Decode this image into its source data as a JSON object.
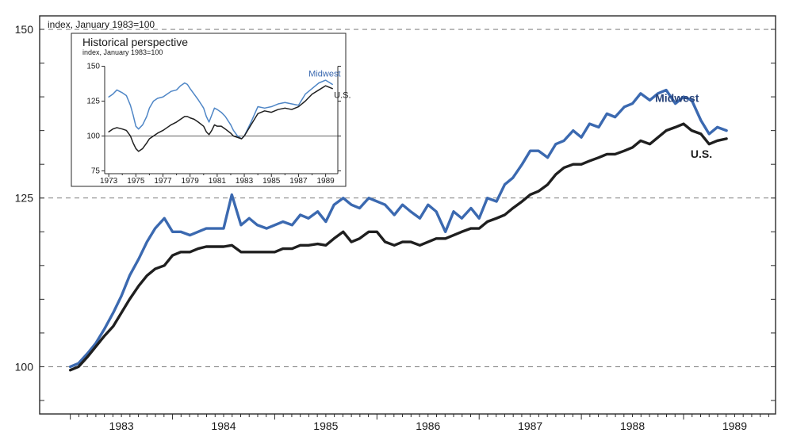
{
  "main_chart": {
    "type": "line",
    "index_label": "index, January 1983=100",
    "background_color": "#ffffff",
    "frame_color": "#2a2a2a",
    "grid_color": "#6a6a6a",
    "grid_dash": "6 5",
    "axis_font_size": 12,
    "tick_font_size": 14,
    "label_font_size": 14,
    "xlim": [
      1982.7,
      1989.9
    ],
    "ylim": [
      93,
      152
    ],
    "yticks": [
      100,
      125,
      150
    ],
    "xticks": [
      1983,
      1984,
      1985,
      1986,
      1987,
      1988,
      1989
    ],
    "minor_xtick_step_months": 1,
    "minor_ytick_step": 5,
    "series": [
      {
        "name": "Midwest",
        "color": "#3b69b0",
        "stroke_width": 3.4,
        "label_color": "#27437a",
        "data": [
          [
            1983.0,
            100.0
          ],
          [
            1983.08,
            100.5
          ],
          [
            1983.17,
            102.0
          ],
          [
            1983.25,
            103.5
          ],
          [
            1983.33,
            105.5
          ],
          [
            1983.42,
            108.0
          ],
          [
            1983.5,
            110.5
          ],
          [
            1983.58,
            113.5
          ],
          [
            1983.67,
            116.0
          ],
          [
            1983.75,
            118.5
          ],
          [
            1983.83,
            120.5
          ],
          [
            1983.92,
            122.0
          ],
          [
            1984.0,
            120.0
          ],
          [
            1984.08,
            120.0
          ],
          [
            1984.17,
            119.5
          ],
          [
            1984.25,
            120.0
          ],
          [
            1984.33,
            120.5
          ],
          [
            1984.42,
            120.5
          ],
          [
            1984.5,
            120.5
          ],
          [
            1984.58,
            125.5
          ],
          [
            1984.67,
            121.0
          ],
          [
            1984.75,
            122.0
          ],
          [
            1984.83,
            121.0
          ],
          [
            1984.92,
            120.5
          ],
          [
            1985.0,
            121.0
          ],
          [
            1985.08,
            121.5
          ],
          [
            1985.17,
            121.0
          ],
          [
            1985.25,
            122.5
          ],
          [
            1985.33,
            122.0
          ],
          [
            1985.42,
            123.0
          ],
          [
            1985.5,
            121.5
          ],
          [
            1985.58,
            124.0
          ],
          [
            1985.67,
            125.0
          ],
          [
            1985.75,
            124.0
          ],
          [
            1985.83,
            123.5
          ],
          [
            1985.92,
            125.0
          ],
          [
            1986.0,
            124.5
          ],
          [
            1986.08,
            124.0
          ],
          [
            1986.17,
            122.5
          ],
          [
            1986.25,
            124.0
          ],
          [
            1986.33,
            123.0
          ],
          [
            1986.42,
            122.0
          ],
          [
            1986.5,
            124.0
          ],
          [
            1986.58,
            123.0
          ],
          [
            1986.67,
            120.0
          ],
          [
            1986.75,
            123.0
          ],
          [
            1986.83,
            122.0
          ],
          [
            1986.92,
            123.5
          ],
          [
            1987.0,
            122.0
          ],
          [
            1987.08,
            125.0
          ],
          [
            1987.17,
            124.5
          ],
          [
            1987.25,
            127.0
          ],
          [
            1987.33,
            128.0
          ],
          [
            1987.42,
            130.0
          ],
          [
            1987.5,
            132.0
          ],
          [
            1987.58,
            132.0
          ],
          [
            1987.67,
            131.0
          ],
          [
            1987.75,
            133.0
          ],
          [
            1987.83,
            133.5
          ],
          [
            1987.92,
            135.0
          ],
          [
            1988.0,
            134.0
          ],
          [
            1988.08,
            136.0
          ],
          [
            1988.17,
            135.5
          ],
          [
            1988.25,
            137.5
          ],
          [
            1988.33,
            137.0
          ],
          [
            1988.42,
            138.5
          ],
          [
            1988.5,
            139.0
          ],
          [
            1988.58,
            140.5
          ],
          [
            1988.67,
            139.5
          ],
          [
            1988.75,
            140.5
          ],
          [
            1988.83,
            141.0
          ],
          [
            1988.92,
            139.0
          ],
          [
            1989.0,
            140.0
          ],
          [
            1989.08,
            139.5
          ],
          [
            1989.17,
            136.5
          ],
          [
            1989.25,
            134.5
          ],
          [
            1989.33,
            135.5
          ],
          [
            1989.42,
            135.0
          ]
        ]
      },
      {
        "name": "U.S.",
        "color": "#1f1f1f",
        "stroke_width": 3.4,
        "label_color": "#1f1f1f",
        "data": [
          [
            1983.0,
            99.5
          ],
          [
            1983.08,
            100.0
          ],
          [
            1983.17,
            101.5
          ],
          [
            1983.25,
            103.0
          ],
          [
            1983.33,
            104.5
          ],
          [
            1983.42,
            106.0
          ],
          [
            1983.5,
            108.0
          ],
          [
            1983.58,
            110.0
          ],
          [
            1983.67,
            112.0
          ],
          [
            1983.75,
            113.5
          ],
          [
            1983.83,
            114.5
          ],
          [
            1983.92,
            115.0
          ],
          [
            1984.0,
            116.5
          ],
          [
            1984.08,
            117.0
          ],
          [
            1984.17,
            117.0
          ],
          [
            1984.25,
            117.5
          ],
          [
            1984.33,
            117.8
          ],
          [
            1984.42,
            117.8
          ],
          [
            1984.5,
            117.8
          ],
          [
            1984.58,
            118.0
          ],
          [
            1984.67,
            117.0
          ],
          [
            1984.75,
            117.0
          ],
          [
            1984.83,
            117.0
          ],
          [
            1984.92,
            117.0
          ],
          [
            1985.0,
            117.0
          ],
          [
            1985.08,
            117.5
          ],
          [
            1985.17,
            117.5
          ],
          [
            1985.25,
            118.0
          ],
          [
            1985.33,
            118.0
          ],
          [
            1985.42,
            118.2
          ],
          [
            1985.5,
            118.0
          ],
          [
            1985.58,
            119.0
          ],
          [
            1985.67,
            120.0
          ],
          [
            1985.75,
            118.5
          ],
          [
            1985.83,
            119.0
          ],
          [
            1985.92,
            120.0
          ],
          [
            1986.0,
            120.0
          ],
          [
            1986.08,
            118.5
          ],
          [
            1986.17,
            118.0
          ],
          [
            1986.25,
            118.5
          ],
          [
            1986.33,
            118.5
          ],
          [
            1986.42,
            118.0
          ],
          [
            1986.5,
            118.5
          ],
          [
            1986.58,
            119.0
          ],
          [
            1986.67,
            119.0
          ],
          [
            1986.75,
            119.5
          ],
          [
            1986.83,
            120.0
          ],
          [
            1986.92,
            120.5
          ],
          [
            1987.0,
            120.5
          ],
          [
            1987.08,
            121.5
          ],
          [
            1987.17,
            122.0
          ],
          [
            1987.25,
            122.5
          ],
          [
            1987.33,
            123.5
          ],
          [
            1987.42,
            124.5
          ],
          [
            1987.5,
            125.5
          ],
          [
            1987.58,
            126.0
          ],
          [
            1987.67,
            127.0
          ],
          [
            1987.75,
            128.5
          ],
          [
            1987.83,
            129.5
          ],
          [
            1987.92,
            130.0
          ],
          [
            1988.0,
            130.0
          ],
          [
            1988.08,
            130.5
          ],
          [
            1988.17,
            131.0
          ],
          [
            1988.25,
            131.5
          ],
          [
            1988.33,
            131.5
          ],
          [
            1988.42,
            132.0
          ],
          [
            1988.5,
            132.5
          ],
          [
            1988.58,
            133.5
          ],
          [
            1988.67,
            133.0
          ],
          [
            1988.75,
            134.0
          ],
          [
            1988.83,
            135.0
          ],
          [
            1988.92,
            135.5
          ],
          [
            1989.0,
            136.0
          ],
          [
            1989.08,
            135.0
          ],
          [
            1989.17,
            134.5
          ],
          [
            1989.25,
            133.0
          ],
          [
            1989.33,
            133.5
          ],
          [
            1989.42,
            133.8
          ]
        ]
      }
    ]
  },
  "inset_chart": {
    "type": "line",
    "title": "Historical perspective",
    "index_label": "index, January 1983=100",
    "background_color": "#ffffff",
    "frame_color": "#2a2a2a",
    "grid_color": "#2a2a2a",
    "xlim": [
      1972.7,
      1989.9
    ],
    "ylim": [
      73,
      152
    ],
    "yticks": [
      75,
      100,
      125,
      150
    ],
    "xticks": [
      1973,
      1975,
      1977,
      1979,
      1981,
      1983,
      1985,
      1987,
      1989
    ],
    "series": [
      {
        "name": "Midwest",
        "color": "#4f86c6",
        "stroke_width": 1.5,
        "label_color": "#3b69b0",
        "data": [
          [
            1973.0,
            128
          ],
          [
            1973.3,
            130
          ],
          [
            1973.6,
            133
          ],
          [
            1974.0,
            131
          ],
          [
            1974.3,
            129
          ],
          [
            1974.6,
            122
          ],
          [
            1974.8,
            115
          ],
          [
            1975.0,
            107
          ],
          [
            1975.2,
            105
          ],
          [
            1975.5,
            108
          ],
          [
            1975.8,
            114
          ],
          [
            1976.0,
            120
          ],
          [
            1976.3,
            125
          ],
          [
            1976.6,
            127
          ],
          [
            1977.0,
            128
          ],
          [
            1977.3,
            130
          ],
          [
            1977.6,
            132
          ],
          [
            1978.0,
            133
          ],
          [
            1978.3,
            136
          ],
          [
            1978.6,
            138
          ],
          [
            1978.8,
            137
          ],
          [
            1979.0,
            134
          ],
          [
            1979.3,
            130
          ],
          [
            1979.6,
            126
          ],
          [
            1980.0,
            120
          ],
          [
            1980.2,
            114
          ],
          [
            1980.4,
            110
          ],
          [
            1980.6,
            115
          ],
          [
            1980.8,
            120
          ],
          [
            1981.0,
            119
          ],
          [
            1981.3,
            117
          ],
          [
            1981.6,
            114
          ],
          [
            1982.0,
            108
          ],
          [
            1982.2,
            104
          ],
          [
            1982.5,
            100
          ],
          [
            1982.8,
            98
          ],
          [
            1983.0,
            100
          ],
          [
            1983.5,
            110
          ],
          [
            1984.0,
            121
          ],
          [
            1984.5,
            120
          ],
          [
            1985.0,
            121
          ],
          [
            1985.5,
            123
          ],
          [
            1986.0,
            124
          ],
          [
            1986.5,
            123
          ],
          [
            1987.0,
            122
          ],
          [
            1987.5,
            130
          ],
          [
            1988.0,
            134
          ],
          [
            1988.5,
            138
          ],
          [
            1989.0,
            140
          ],
          [
            1989.5,
            137
          ]
        ]
      },
      {
        "name": "U.S.",
        "color": "#1f1f1f",
        "stroke_width": 1.5,
        "label_color": "#1f1f1f",
        "data": [
          [
            1973.0,
            103
          ],
          [
            1973.3,
            105
          ],
          [
            1973.6,
            106
          ],
          [
            1974.0,
            105
          ],
          [
            1974.3,
            104
          ],
          [
            1974.6,
            100
          ],
          [
            1974.8,
            95
          ],
          [
            1975.0,
            91
          ],
          [
            1975.2,
            89
          ],
          [
            1975.5,
            91
          ],
          [
            1975.8,
            95
          ],
          [
            1976.0,
            98
          ],
          [
            1976.3,
            100
          ],
          [
            1976.6,
            102
          ],
          [
            1977.0,
            104
          ],
          [
            1977.3,
            106
          ],
          [
            1977.6,
            108
          ],
          [
            1978.0,
            110
          ],
          [
            1978.3,
            112
          ],
          [
            1978.6,
            114
          ],
          [
            1978.8,
            114
          ],
          [
            1979.0,
            113
          ],
          [
            1979.3,
            112
          ],
          [
            1979.6,
            110
          ],
          [
            1980.0,
            107
          ],
          [
            1980.2,
            103
          ],
          [
            1980.4,
            101
          ],
          [
            1980.6,
            104
          ],
          [
            1980.8,
            108
          ],
          [
            1981.0,
            107
          ],
          [
            1981.3,
            107
          ],
          [
            1981.6,
            105
          ],
          [
            1982.0,
            102
          ],
          [
            1982.2,
            100
          ],
          [
            1982.5,
            99
          ],
          [
            1982.8,
            98
          ],
          [
            1983.0,
            100
          ],
          [
            1983.5,
            108
          ],
          [
            1984.0,
            116
          ],
          [
            1984.5,
            118
          ],
          [
            1985.0,
            117
          ],
          [
            1985.5,
            119
          ],
          [
            1986.0,
            120
          ],
          [
            1986.5,
            119
          ],
          [
            1987.0,
            121
          ],
          [
            1987.5,
            125
          ],
          [
            1988.0,
            130
          ],
          [
            1988.5,
            133
          ],
          [
            1989.0,
            136
          ],
          [
            1989.5,
            134
          ]
        ]
      }
    ]
  },
  "labels": {
    "midwest": "Midwest",
    "us": "U.S."
  }
}
